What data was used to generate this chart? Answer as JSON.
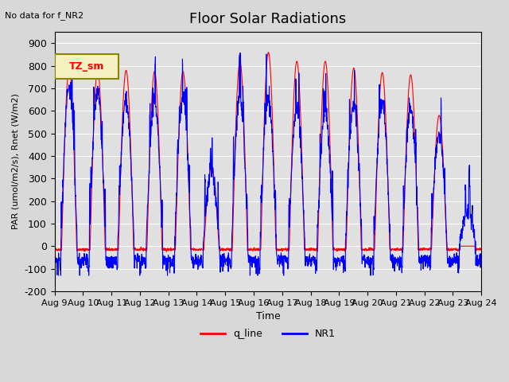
{
  "title": "Floor Solar Radiations",
  "xlabel": "Time",
  "ylabel": "PAR (umol/m2/s), Rnet (W/m2)",
  "no_data_text": "No data for f_NR2",
  "legend_label_text": "TZ_sm",
  "ylim": [
    -200,
    950
  ],
  "yticks": [
    -200,
    -100,
    0,
    100,
    200,
    300,
    400,
    500,
    600,
    700,
    800,
    900
  ],
  "xtick_labels": [
    "Aug 9",
    "Aug 10",
    "Aug 11",
    "Aug 12",
    "Aug 13",
    "Aug 14",
    "Aug 15",
    "Aug 16",
    "Aug 17",
    "Aug 18",
    "Aug 19",
    "Aug 20",
    "Aug 21",
    "Aug 22",
    "Aug 23",
    "Aug 24"
  ],
  "bg_color": "#d8d8d8",
  "plot_bg_color": "#e0e0e0",
  "line_color_red": "#ff0000",
  "line_color_blue": "#0000ff",
  "legend_q_line": "q_line",
  "legend_NR1": "NR1",
  "n_days": 15,
  "points_per_day": 144,
  "start_day": 9
}
